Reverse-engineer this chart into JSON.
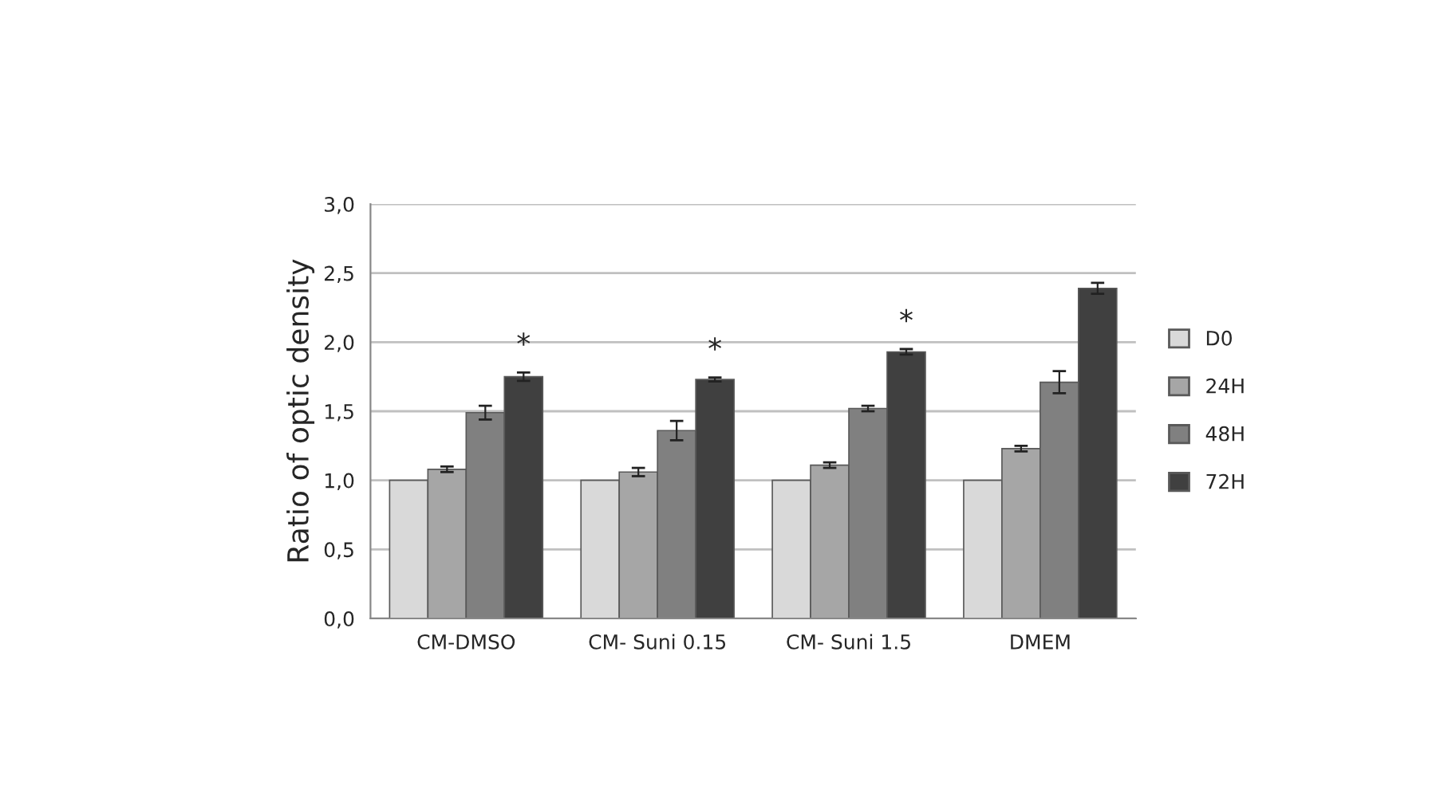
{
  "chart_data": {
    "type": "bar",
    "ylabel": "Ratio of optic density",
    "categories": [
      "CM-DMSO",
      "CM- Suni 0.15",
      "CM- Suni 1.5",
      "DMEM"
    ],
    "series": [
      {
        "name": "D0",
        "color": "#d9d9d9",
        "values": [
          1.0,
          1.0,
          1.0,
          1.0
        ]
      },
      {
        "name": "24H",
        "color": "#a6a6a6",
        "values": [
          1.08,
          1.06,
          1.11,
          1.23
        ],
        "errors": [
          0.02,
          0.03,
          0.02,
          0.02
        ]
      },
      {
        "name": "48H",
        "color": "#808080",
        "values": [
          1.49,
          1.36,
          1.52,
          1.71
        ],
        "errors": [
          0.05,
          0.07,
          0.02,
          0.08
        ]
      },
      {
        "name": "72H",
        "color": "#404040",
        "values": [
          1.75,
          1.73,
          1.93,
          2.39
        ],
        "errors": [
          0.03,
          0.015,
          0.02,
          0.04
        ]
      }
    ],
    "ylim": [
      0,
      3
    ],
    "yticks": [
      {
        "value": 0,
        "label": "0,0"
      },
      {
        "value": 0.5,
        "label": "0,5"
      },
      {
        "value": 1,
        "label": "1,0"
      },
      {
        "value": 1.5,
        "label": "1,5"
      },
      {
        "value": 2,
        "label": "2,0"
      },
      {
        "value": 2.5,
        "label": "2,5"
      },
      {
        "value": 3,
        "label": "3,0"
      }
    ],
    "grid": "y",
    "legend": "right",
    "annotations": [
      "*",
      "*",
      "*"
    ]
  }
}
